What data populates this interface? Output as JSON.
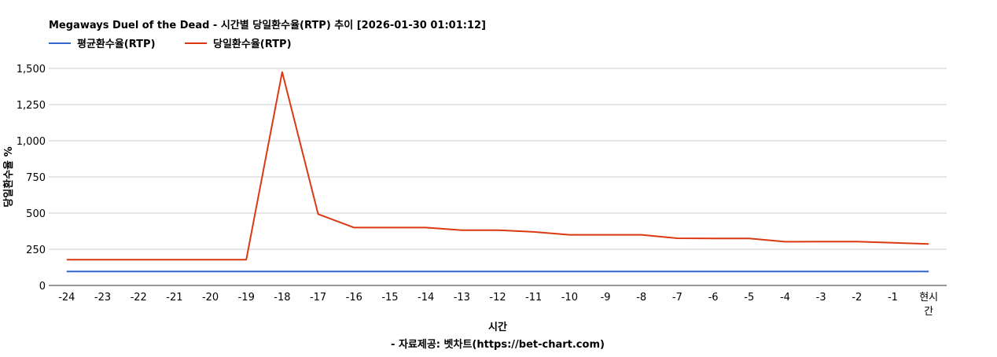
{
  "colors": {
    "avg_line": "#3366cc",
    "daily_line": "#dc3912",
    "grid": "#cccccc",
    "axis": "#333333",
    "background": "#ffffff"
  },
  "chart_data": {
    "type": "line",
    "title": "Megaways Duel of the Dead - 시간별 당일환수율(RTP) 추이 [2026-01-30 01:01:12]",
    "xlabel": "시간",
    "ylabel": "당일환수율 %",
    "footer": "- 자료제공: 벳차트(https://bet-chart.com)",
    "categories": [
      "-24",
      "-23",
      "-22",
      "-21",
      "-20",
      "-19",
      "-18",
      "-17",
      "-16",
      "-15",
      "-14",
      "-13",
      "-12",
      "-11",
      "-10",
      "-9",
      "-8",
      "-7",
      "-6",
      "-5",
      "-4",
      "-3",
      "-2",
      "-1",
      "현시간"
    ],
    "series": [
      {
        "name": "평균환수율(RTP)",
        "color": "#3366cc",
        "values": [
          96,
          96,
          96,
          96,
          96,
          96,
          96,
          96,
          96,
          96,
          96,
          96,
          96,
          96,
          96,
          96,
          96,
          96,
          96,
          96,
          96,
          96,
          96,
          96,
          96
        ]
      },
      {
        "name": "당일환수율(RTP)",
        "color": "#dc3912",
        "values": [
          178,
          178,
          178,
          178,
          178,
          178,
          1475,
          493,
          400,
          400,
          400,
          382,
          382,
          370,
          350,
          350,
          350,
          326,
          325,
          325,
          302,
          303,
          303,
          295,
          287
        ]
      }
    ],
    "ylim": [
      0,
      1500
    ],
    "yticks": [
      0,
      250,
      500,
      750,
      1000,
      1250,
      1500
    ],
    "ytick_labels": [
      "0",
      "250",
      "500",
      "750",
      "1,000",
      "1,250",
      "1,500"
    ],
    "grid": true,
    "legend_position": "top-left"
  }
}
